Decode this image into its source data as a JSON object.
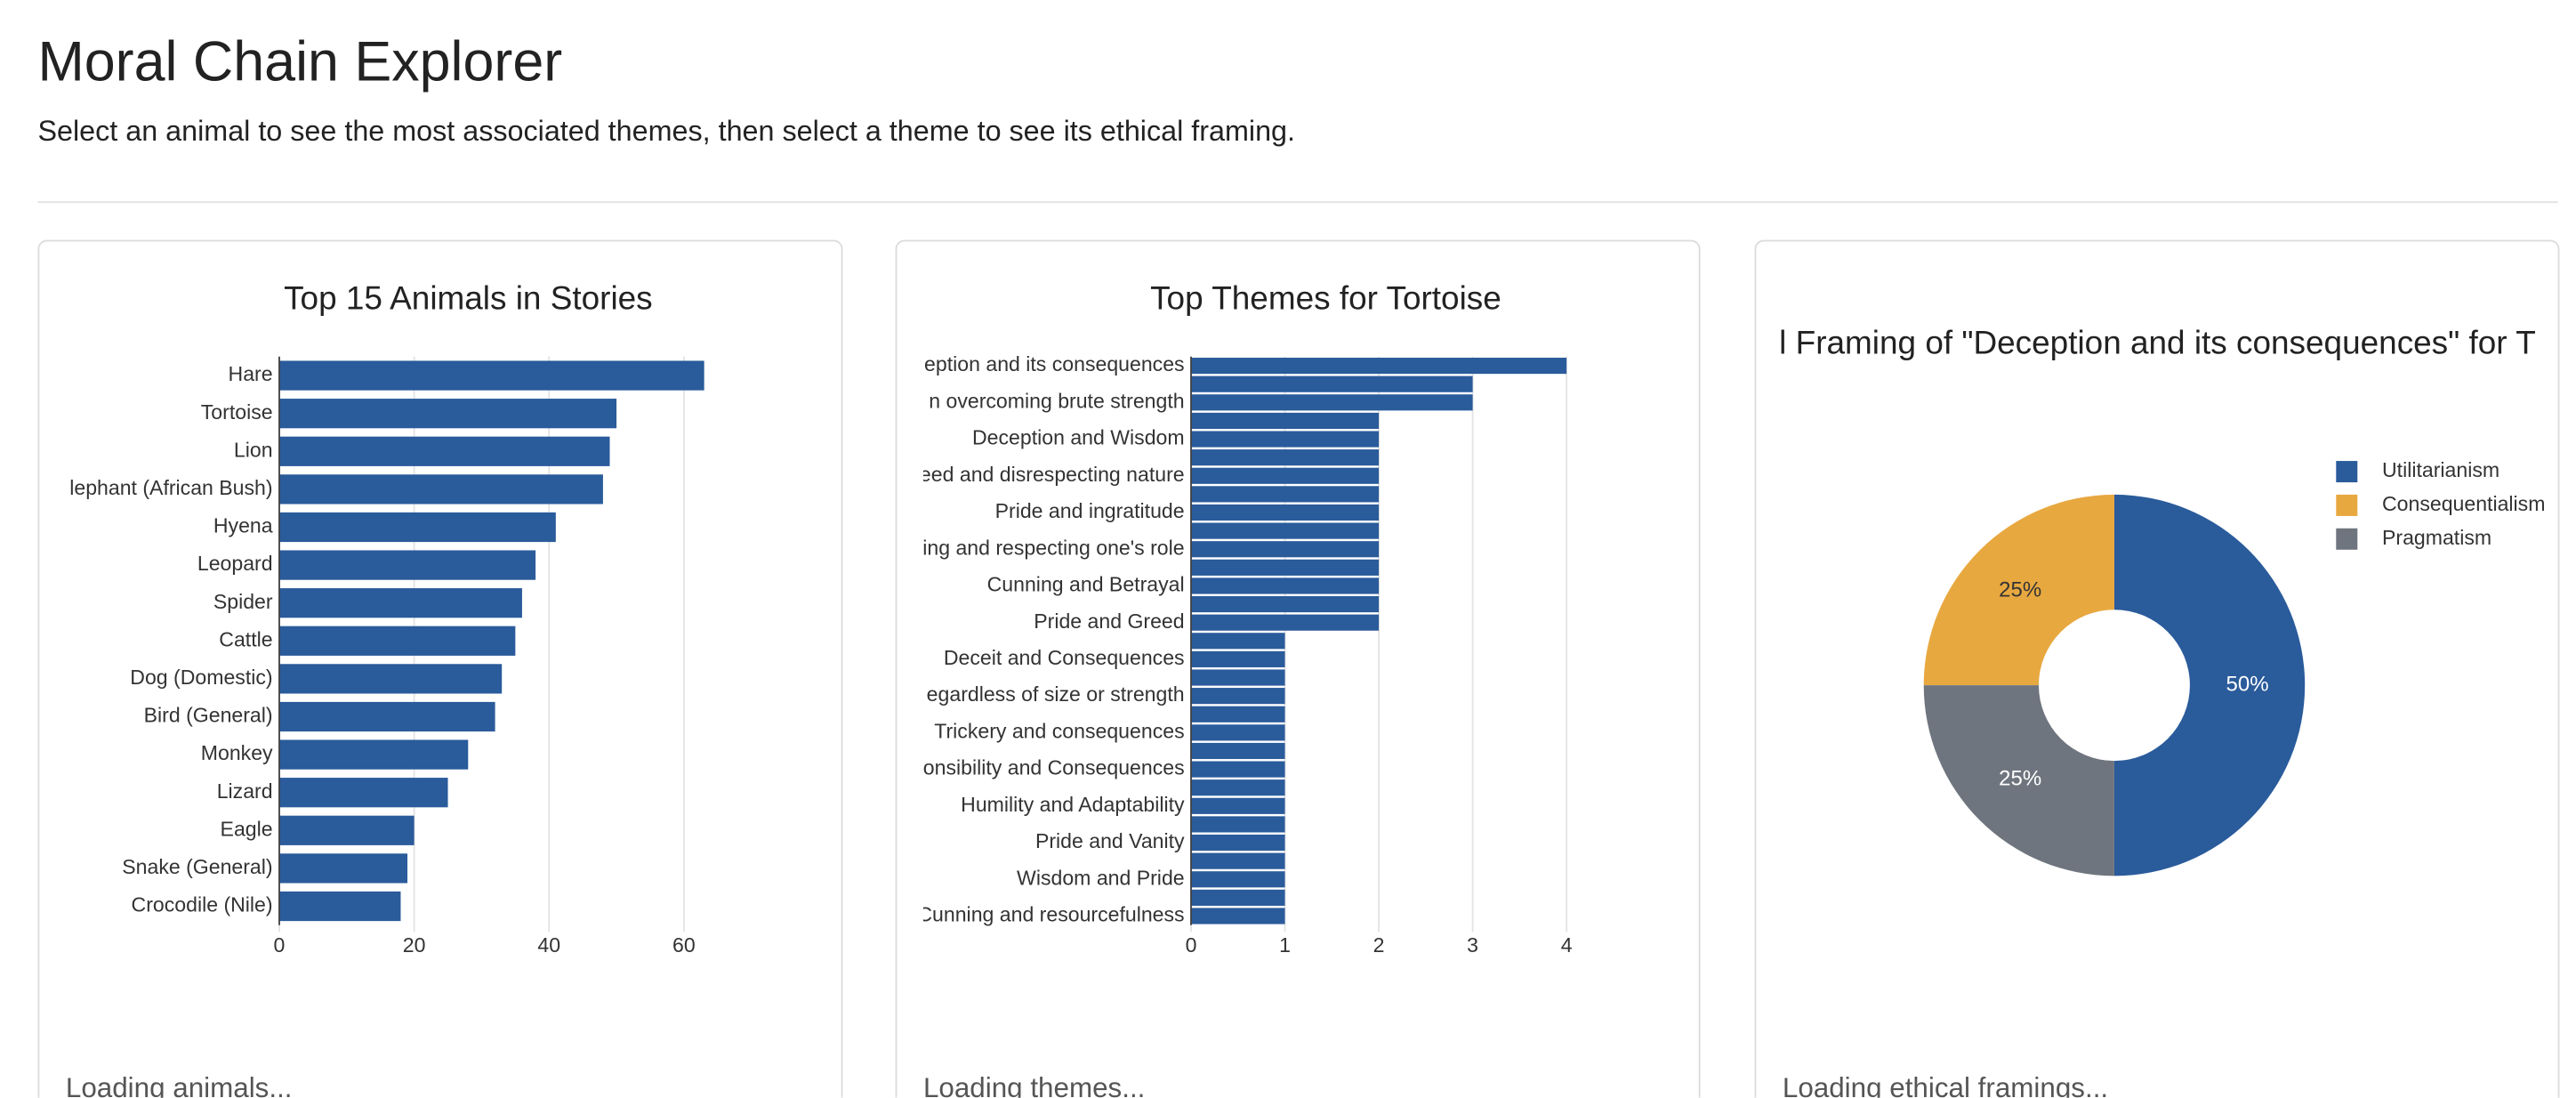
{
  "header": {
    "title": "Moral Chain Explorer",
    "subtitle": "Select an animal to see the most associated themes, then select a theme to see its ethical framing."
  },
  "chart_data": [
    {
      "type": "bar",
      "title": "Top 15 Animals in Stories",
      "categories": [
        "Hare",
        "Tortoise",
        "Lion",
        "lephant (African Bush)",
        "Hyena",
        "Leopard",
        "Spider",
        "Cattle",
        "Dog (Domestic)",
        "Bird (General)",
        "Monkey",
        "Lizard",
        "Eagle",
        "Snake (General)",
        "Crocodile (Nile)"
      ],
      "values": [
        63,
        50,
        49,
        48,
        41,
        38,
        36,
        35,
        33,
        32,
        28,
        25,
        20,
        19,
        18
      ],
      "color": "#2a5b9b",
      "xlim": [
        0,
        66.5
      ],
      "xticks": [
        0,
        20,
        40,
        60
      ],
      "grid": true
    },
    {
      "type": "bar",
      "title": "Top Themes for Tortoise",
      "categories": [
        "eption and its consequences",
        null,
        "n overcoming brute strength",
        null,
        "Deception and Wisdom",
        null,
        "eed and disrespecting nature",
        null,
        "Pride and ingratitude",
        null,
        "ing and respecting one's role",
        null,
        "Cunning and Betrayal",
        null,
        "Pride and Greed",
        null,
        "Deceit and Consequences",
        null,
        "egardless of size or strength",
        null,
        "Trickery and consequences",
        null,
        "onsibility and Consequences",
        null,
        "Humility and Adaptability",
        null,
        "Pride and Vanity",
        null,
        "Wisdom and Pride",
        null,
        "Cunning and resourcefulness"
      ],
      "values": [
        4,
        3,
        3,
        2,
        2,
        2,
        2,
        2,
        2,
        2,
        2,
        2,
        2,
        2,
        2,
        1,
        1,
        1,
        1,
        1,
        1,
        1,
        1,
        1,
        1,
        1,
        1,
        1,
        1,
        1,
        1
      ],
      "color": "#2a5b9b",
      "xlim": [
        0,
        4.2
      ],
      "xticks": [
        0,
        1,
        2,
        3,
        4
      ],
      "grid": true
    },
    {
      "type": "pie",
      "title": "l Framing of \"Deception and its consequences\" for T",
      "categories": [
        "Utilitarianism",
        "Consequentialism",
        "Pragmatism"
      ],
      "values": [
        50,
        25,
        25
      ],
      "value_labels": [
        "50%",
        "25%",
        "25%"
      ],
      "colors": [
        "#2a5b9b",
        "#e8a840",
        "#6f757e"
      ],
      "hole": true,
      "legend": "top-right"
    }
  ],
  "status": [
    "Loading animals...",
    "Loading themes...",
    "Loading ethical framings..."
  ]
}
